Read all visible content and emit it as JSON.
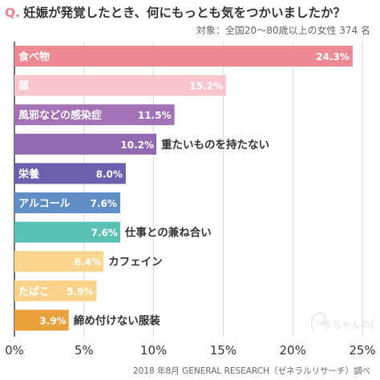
{
  "header": {
    "q_mark": "Q.",
    "title": "妊娠が発覚したとき、何にもっとも気をつかいましたか？",
    "subtitle": "対象：全国20〜80歳以上の女性 374 名"
  },
  "footer": {
    "source": "2018 年8月 GENERAL RESEARCH（ゼネラルリサーチ）調べ"
  },
  "watermark": {
    "text": "赤ちゃんの部屋"
  },
  "chart_data": {
    "type": "bar",
    "orientation": "horizontal",
    "categories": [
      "食べ物",
      "薬",
      "風邪などの感染症",
      "重たいものを持たない",
      "栄養",
      "アルコール",
      "仕事との兼ね合い",
      "カフェイン",
      "たばこ",
      "締め付けない服装"
    ],
    "values": [
      24.3,
      15.2,
      11.5,
      10.2,
      8.0,
      7.6,
      7.6,
      6.4,
      5.9,
      3.9
    ],
    "value_labels": [
      "24.3%",
      "15.2%",
      "11.5%",
      "10.2%",
      "8.0%",
      "7.6%",
      "7.6%",
      "6.4%",
      "5.9%",
      "3.9%"
    ],
    "colors": [
      "#ee8893",
      "#f8c6cc",
      "#a472b6",
      "#9069b0",
      "#6b60ae",
      "#5f8ec4",
      "#58c1b4",
      "#fcd68e",
      "#fbd38c",
      "#e9a23b"
    ],
    "xlim": [
      0,
      25
    ],
    "xticks": [
      0,
      5,
      10,
      15,
      20,
      25
    ],
    "xtick_labels": [
      "0%",
      "5%",
      "10%",
      "15%",
      "20%",
      "25%"
    ],
    "grid": true,
    "label_position": "category inside bar when it fits, otherwise right of bar"
  }
}
